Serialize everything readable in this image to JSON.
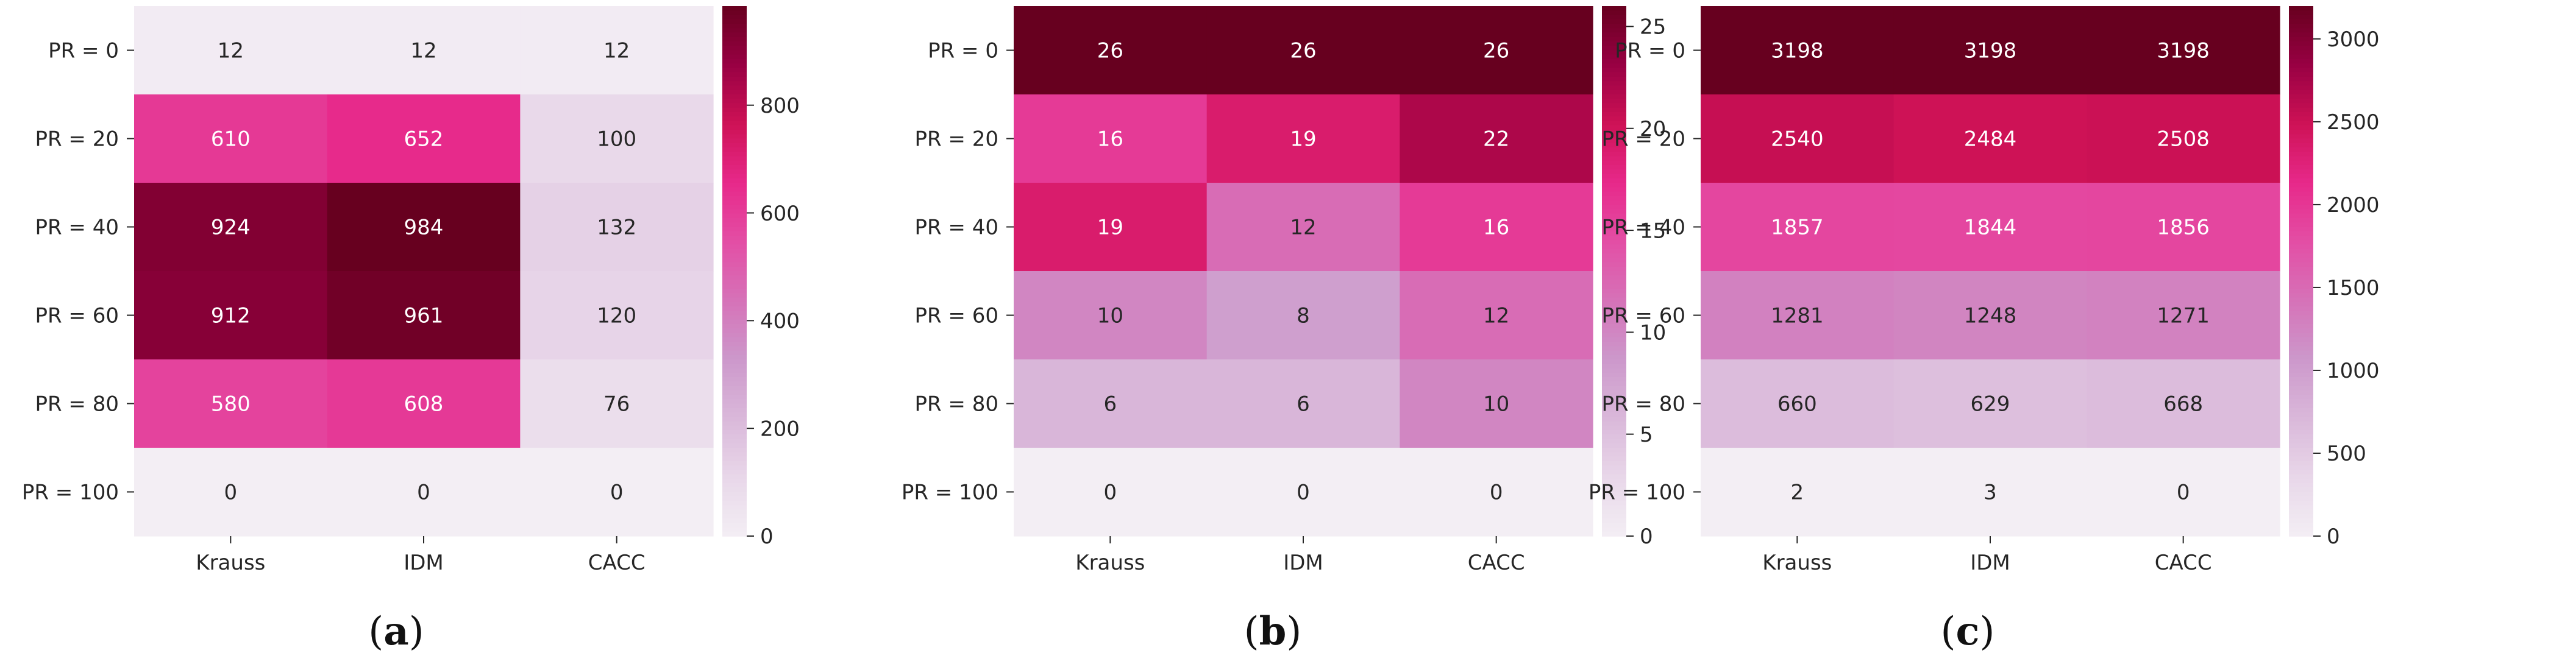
{
  "chart_data": [
    {
      "type": "heatmap",
      "caption": "a",
      "rows": [
        "PR = 0",
        "PR = 20",
        "PR = 40",
        "PR = 60",
        "PR  = 80",
        "PR = 100"
      ],
      "columns": [
        "Krauss",
        "IDM",
        "CACC"
      ],
      "values": [
        [
          12,
          12,
          12
        ],
        [
          610,
          652,
          100
        ],
        [
          924,
          984,
          132
        ],
        [
          912,
          961,
          120
        ],
        [
          580,
          608,
          76
        ],
        [
          0,
          0,
          0
        ]
      ],
      "colorbar": {
        "min": 0,
        "max": 984,
        "ticks": [
          0,
          200,
          400,
          600,
          800
        ]
      }
    },
    {
      "type": "heatmap",
      "caption": "b",
      "rows": [
        "PR = 0",
        "PR = 20",
        "PR = 40",
        "PR = 60",
        "PR  = 80",
        "PR = 100"
      ],
      "columns": [
        "Krauss",
        "IDM",
        "CACC"
      ],
      "values": [
        [
          26,
          26,
          26
        ],
        [
          16,
          19,
          22
        ],
        [
          19,
          12,
          16
        ],
        [
          10,
          8,
          12
        ],
        [
          6,
          6,
          10
        ],
        [
          0,
          0,
          0
        ]
      ],
      "colorbar": {
        "min": 0,
        "max": 26,
        "ticks": [
          0,
          5,
          10,
          15,
          20,
          25
        ]
      }
    },
    {
      "type": "heatmap",
      "caption": "c",
      "rows": [
        "PR = 0",
        "PR = 20",
        "PR = 40",
        "PR = 60",
        "PR  = 80",
        "PR = 100"
      ],
      "columns": [
        "Krauss",
        "IDM",
        "CACC"
      ],
      "values": [
        [
          3198,
          3198,
          3198
        ],
        [
          2540,
          2484,
          2508
        ],
        [
          1857,
          1844,
          1856
        ],
        [
          1281,
          1248,
          1271
        ],
        [
          660,
          629,
          668
        ],
        [
          2,
          3,
          0
        ]
      ],
      "colorbar": {
        "min": 0,
        "max": 3198,
        "ticks": [
          0,
          500,
          1000,
          1500,
          2000,
          2500,
          3000
        ]
      }
    }
  ],
  "colormap": [
    "#f3eef4",
    "#e8d7e9",
    "#dab8da",
    "#cc98cb",
    "#d672b8",
    "#e34ea5",
    "#e7298a",
    "#ce1256",
    "#980043",
    "#67001f"
  ]
}
